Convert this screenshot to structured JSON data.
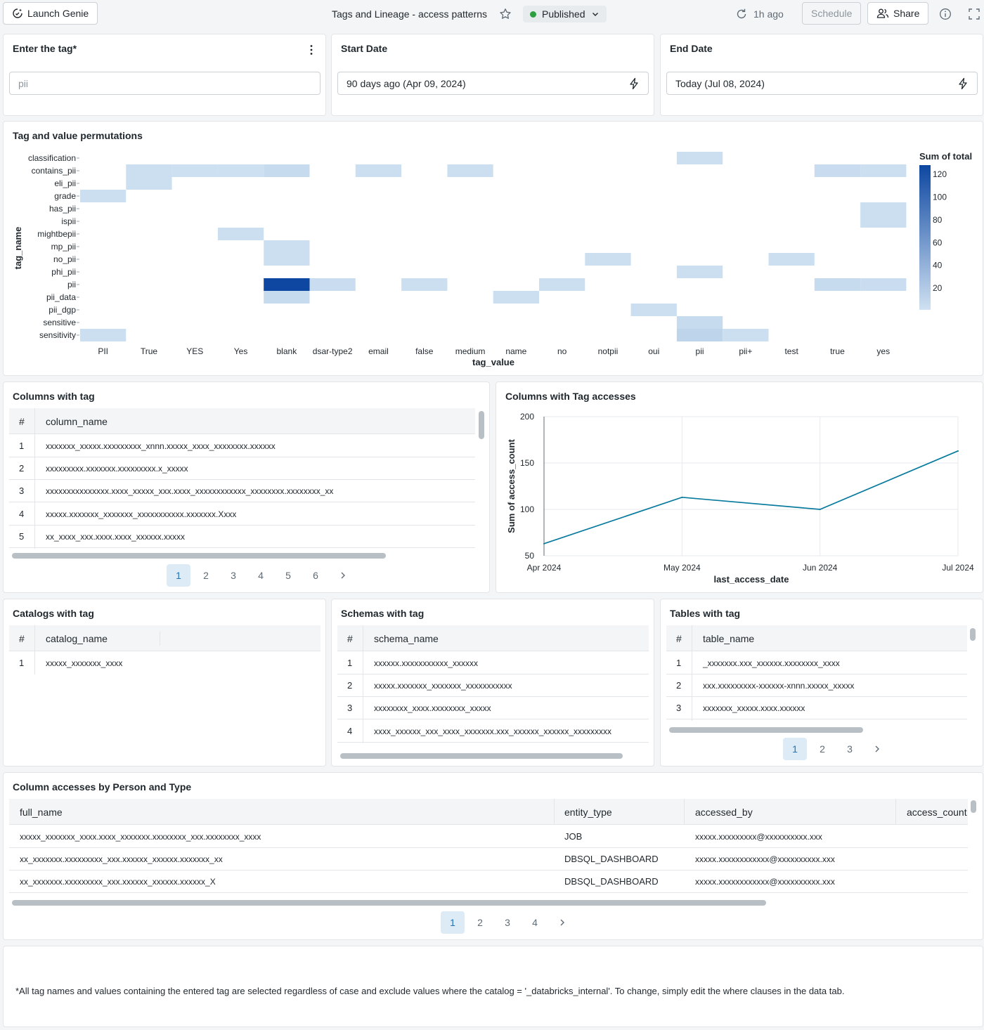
{
  "topbar": {
    "launch_genie": "Launch Genie",
    "title": "Tags and Lineage - access patterns",
    "status": "Published",
    "refreshed": "1h ago",
    "schedule": "Schedule",
    "share": "Share"
  },
  "filters": {
    "tag": {
      "label": "Enter the tag*",
      "value": "pii"
    },
    "start": {
      "label": "Start Date",
      "value": "90 days ago (Apr 09, 2024)"
    },
    "end": {
      "label": "End Date",
      "value": "Today (Jul 08, 2024)"
    }
  },
  "heatmap": {
    "title": "Tag and value permutations",
    "legend_title": "Sum of total",
    "colors": {
      "low": "#cfe1f2",
      "high": "#0d47a1"
    }
  },
  "line": {
    "title": "Columns with Tag accesses"
  },
  "chart_data": [
    {
      "type": "heatmap",
      "title": "Tag and value permutations",
      "xlabel": "tag_value",
      "ylabel": "tag_name",
      "x": [
        "PII",
        "True",
        "YES",
        "Yes",
        "blank",
        "dsar-type2",
        "email",
        "false",
        "medium",
        "name",
        "no",
        "notpii",
        "oui",
        "pii",
        "pii+",
        "test",
        "true",
        "yes"
      ],
      "y": [
        "classification",
        "contains_pii",
        "eli_pii",
        "grade",
        "has_pii",
        "ispii",
        "mightbepii",
        "mp_pii",
        "no_pii",
        "phi_pii",
        "pii",
        "pii_data",
        "pii_dgp",
        "sensitive",
        "sensitivity"
      ],
      "legend_ticks": [
        20,
        40,
        60,
        80,
        100,
        120
      ],
      "color_range": [
        1,
        128
      ],
      "cells": [
        {
          "x": "pii",
          "y": "classification",
          "value": 3
        },
        {
          "x": "True",
          "y": "contains_pii",
          "value": 3
        },
        {
          "x": "YES",
          "y": "contains_pii",
          "value": 2
        },
        {
          "x": "Yes",
          "y": "contains_pii",
          "value": 2
        },
        {
          "x": "blank",
          "y": "contains_pii",
          "value": 6
        },
        {
          "x": "email",
          "y": "contains_pii",
          "value": 3
        },
        {
          "x": "medium",
          "y": "contains_pii",
          "value": 3
        },
        {
          "x": "true",
          "y": "contains_pii",
          "value": 5
        },
        {
          "x": "yes",
          "y": "contains_pii",
          "value": 3
        },
        {
          "x": "True",
          "y": "eli_pii",
          "value": 3
        },
        {
          "x": "PII",
          "y": "grade",
          "value": 3
        },
        {
          "x": "yes",
          "y": "has_pii",
          "value": 3
        },
        {
          "x": "yes",
          "y": "ispii",
          "value": 3
        },
        {
          "x": "Yes",
          "y": "mightbepii",
          "value": 3
        },
        {
          "x": "blank",
          "y": "mp_pii",
          "value": 3
        },
        {
          "x": "blank",
          "y": "no_pii",
          "value": 3
        },
        {
          "x": "notpii",
          "y": "no_pii",
          "value": 3
        },
        {
          "x": "test",
          "y": "no_pii",
          "value": 3
        },
        {
          "x": "pii",
          "y": "phi_pii",
          "value": 3
        },
        {
          "x": "blank",
          "y": "pii",
          "value": 128
        },
        {
          "x": "dsar-type2",
          "y": "pii",
          "value": 4
        },
        {
          "x": "false",
          "y": "pii",
          "value": 3
        },
        {
          "x": "no",
          "y": "pii",
          "value": 3
        },
        {
          "x": "true",
          "y": "pii",
          "value": 6
        },
        {
          "x": "yes",
          "y": "pii",
          "value": 4
        },
        {
          "x": "blank",
          "y": "pii_data",
          "value": 6
        },
        {
          "x": "name",
          "y": "pii_data",
          "value": 3
        },
        {
          "x": "oui",
          "y": "pii_dgp",
          "value": 3
        },
        {
          "x": "pii",
          "y": "sensitive",
          "value": 6
        },
        {
          "x": "PII",
          "y": "sensitivity",
          "value": 3
        },
        {
          "x": "pii",
          "y": "sensitivity",
          "value": 12
        },
        {
          "x": "pii+",
          "y": "sensitivity",
          "value": 3
        }
      ]
    },
    {
      "type": "line",
      "title": "Columns with Tag accesses",
      "xlabel": "last_access_date",
      "ylabel": "Sum of access_count",
      "ylim": [
        50,
        200
      ],
      "y_ticks": [
        50,
        100,
        150,
        200
      ],
      "categories": [
        "Apr 2024",
        "May 2024",
        "Jun 2024",
        "Jul 2024"
      ],
      "values": [
        63,
        113,
        100,
        163
      ],
      "color": "#077a9d"
    }
  ],
  "columns_table": {
    "title": "Columns with tag",
    "headers": [
      "#",
      "column_name"
    ],
    "rows": [
      [
        "1",
        "xxxxxxx_xxxxx.xxxxxxxxx_xnnn.xxxxx_xxxx_xxxxxxxx.xxxxxx"
      ],
      [
        "2",
        "xxxxxxxxx.xxxxxxx.xxxxxxxxx.x_xxxxx"
      ],
      [
        "3",
        "xxxxxxxxxxxxxxx.xxxx_xxxxx_xxx.xxxx_xxxxxxxxxxxx_xxxxxxxx.xxxxxxxx_xx"
      ],
      [
        "4",
        "xxxxx.xxxxxxx_xxxxxxx_xxxxxxxxxxx.xxxxxxx.Xxxx"
      ],
      [
        "5",
        "xx_xxxx_xxx.xxxx.xxxx_xxxxxx.xxxxx"
      ]
    ],
    "pages": [
      "1",
      "2",
      "3",
      "4",
      "5",
      "6"
    ]
  },
  "catalogs_table": {
    "title": "Catalogs with tag",
    "headers": [
      "#",
      "catalog_name"
    ],
    "rows": [
      [
        "1",
        "xxxxx_xxxxxxx_xxxx"
      ]
    ]
  },
  "schemas_table": {
    "title": "Schemas with tag",
    "headers": [
      "#",
      "schema_name"
    ],
    "rows": [
      [
        "1",
        "xxxxxx.xxxxxxxxxxx_xxxxxx"
      ],
      [
        "2",
        "xxxxx.xxxxxxx_xxxxxxx_xxxxxxxxxxx"
      ],
      [
        "3",
        "xxxxxxxx_xxxx.xxxxxxxx_xxxxx"
      ],
      [
        "4",
        "xxxx_xxxxxx_xxx_xxxx_xxxxxxx.xxx_xxxxxx_xxxxxx_xxxxxxxxx"
      ]
    ]
  },
  "tables_table": {
    "title": "Tables with tag",
    "headers": [
      "#",
      "table_name"
    ],
    "rows": [
      [
        "1",
        "_xxxxxxx.xxx_xxxxxx.xxxxxxxx_xxxx"
      ],
      [
        "2",
        "xxx.xxxxxxxxx-xxxxxx-xnnn.xxxxx_xxxxx"
      ],
      [
        "3",
        "xxxxxxx_xxxxx.xxxx.xxxxxx"
      ]
    ],
    "pages": [
      "1",
      "2",
      "3"
    ]
  },
  "accesses_table": {
    "title": "Column accesses by Person and Type",
    "headers": [
      "full_name",
      "entity_type",
      "accessed_by",
      "access_count"
    ],
    "rows": [
      [
        "xxxxx_xxxxxxx_xxxx.xxxx_xxxxxxx.xxxxxxxx_xxx.xxxxxxxx_xxxx",
        "JOB",
        "xxxxx.xxxxxxxxx@xxxxxxxxxx.xxx"
      ],
      [
        "xx_xxxxxxx.xxxxxxxxx_xxx.xxxxxx_xxxxxx.xxxxxxx_xx",
        "DBSQL_DASHBOARD",
        "xxxxx.xxxxxxxxxxxx@xxxxxxxxxx.xxx"
      ],
      [
        "xx_xxxxxxx.xxxxxxxxx_xxx.xxxxxx_xxxxxx.xxxxxx_X",
        "DBSQL_DASHBOARD",
        "xxxxx.xxxxxxxxxxxx@xxxxxxxxxx.xxx"
      ]
    ],
    "pages": [
      "1",
      "2",
      "3",
      "4"
    ]
  },
  "footnote": "*All tag names and values containing the entered tag are selected regardless of case and exclude values where the catalog = '_databricks_internal'. To change, simply edit the where clauses in the data tab."
}
